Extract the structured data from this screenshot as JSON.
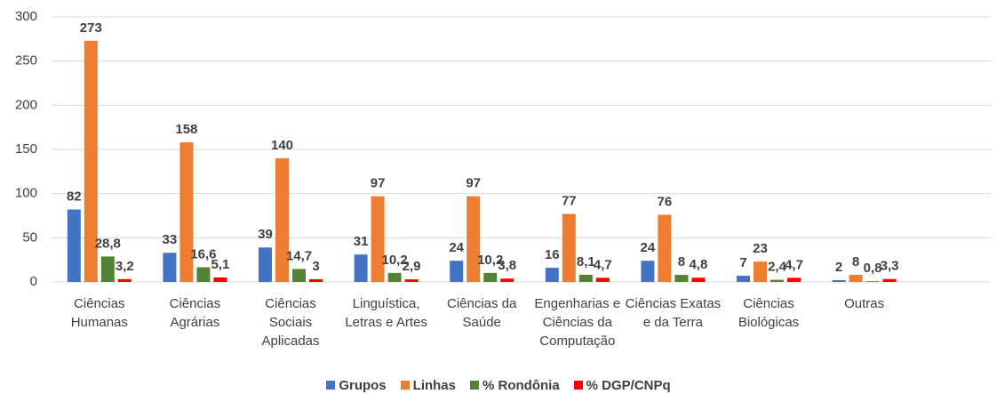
{
  "chart_data": {
    "type": "bar",
    "categories": [
      "Ciências Humanas",
      "Ciências Agrárias",
      "Ciências Sociais Aplicadas",
      "Linguística, Letras e Artes",
      "Ciências da Saúde",
      "Engenharias e Ciências da Computação",
      "Ciências Exatas e da Terra",
      "Ciências Biológicas",
      "Outras"
    ],
    "series": [
      {
        "name": "Grupos",
        "color": "#4472c4",
        "values": [
          82,
          33,
          39,
          31,
          24,
          16,
          24,
          7,
          2
        ]
      },
      {
        "name": "Linhas",
        "color": "#ed7d31",
        "values": [
          273,
          158,
          140,
          97,
          97,
          77,
          76,
          23,
          8
        ]
      },
      {
        "name": "% Rondônia",
        "color": "#548235",
        "values": [
          28.8,
          16.6,
          14.7,
          10.2,
          10.2,
          8.1,
          8,
          2.4,
          0.8
        ],
        "value_labels": [
          "28,8",
          "16,6",
          "14,7",
          "10,2",
          "10,2",
          "8,1",
          "8",
          "2,4",
          "0,8"
        ]
      },
      {
        "name": "% DGP/CNPq",
        "color": "#ff0000",
        "values": [
          3.2,
          5.1,
          3,
          2.9,
          3.8,
          4.7,
          4.8,
          4.7,
          3.3
        ],
        "value_labels": [
          "3,2",
          "5,1",
          "3",
          "2,9",
          "3,8",
          "4,7",
          "4,8",
          "4,7",
          "3,3"
        ]
      }
    ],
    "ylim": [
      0,
      300
    ],
    "yticks": [
      0,
      50,
      100,
      150,
      200,
      250,
      300
    ],
    "grid": true,
    "legend": "bottom"
  }
}
